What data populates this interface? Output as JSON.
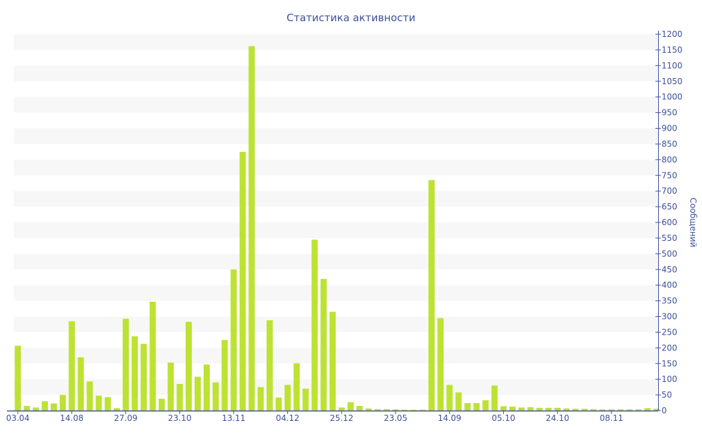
{
  "chart_data": {
    "type": "bar",
    "title": "Статистика активности",
    "xlabel": "",
    "ylabel": "Сообщений",
    "ylim": [
      0,
      1200
    ],
    "y_ticks": [
      0,
      50,
      100,
      150,
      200,
      250,
      300,
      350,
      400,
      450,
      500,
      550,
      600,
      650,
      700,
      750,
      800,
      850,
      900,
      950,
      1000,
      1050,
      1100,
      1150,
      1200
    ],
    "y_axis_side": "right",
    "grid": "alternating horizontal bands every 50",
    "categories": [
      "03.04",
      "",
      "",
      "",
      "",
      "",
      "14.08",
      "",
      "",
      "",
      "",
      "",
      "27.09",
      "",
      "",
      "",
      "",
      "",
      "23.10",
      "",
      "",
      "",
      "",
      "",
      "13.11",
      "",
      "",
      "",
      "",
      "",
      "04.12",
      "",
      "",
      "",
      "",
      "",
      "25.12",
      "",
      "",
      "",
      "",
      "",
      "23.05",
      "",
      "",
      "",
      "",
      "",
      "14.09",
      "",
      "",
      "",
      "",
      "",
      "05.10",
      "",
      "",
      "",
      "",
      "",
      "24.10",
      "",
      "",
      "",
      "",
      "",
      "08.11",
      "",
      "",
      "",
      "",
      ""
    ],
    "values": [
      207,
      15,
      10,
      30,
      23,
      50,
      285,
      170,
      93,
      48,
      43,
      8,
      293,
      237,
      213,
      347,
      38,
      153,
      85,
      283,
      108,
      147,
      90,
      225,
      450,
      825,
      1162,
      75,
      288,
      42,
      82,
      151,
      70,
      545,
      420,
      315,
      10,
      27,
      15,
      7,
      5,
      5,
      4,
      3,
      3,
      3,
      735,
      295,
      82,
      58,
      24,
      24,
      33,
      80,
      14,
      13,
      10,
      11,
      9,
      9,
      9,
      7,
      6,
      6,
      5,
      4,
      4,
      4,
      4,
      4,
      8,
      6
    ],
    "colors": {
      "bar": "#bde232",
      "axis": "#3e4f9c",
      "band": "#f7f7f7"
    }
  }
}
